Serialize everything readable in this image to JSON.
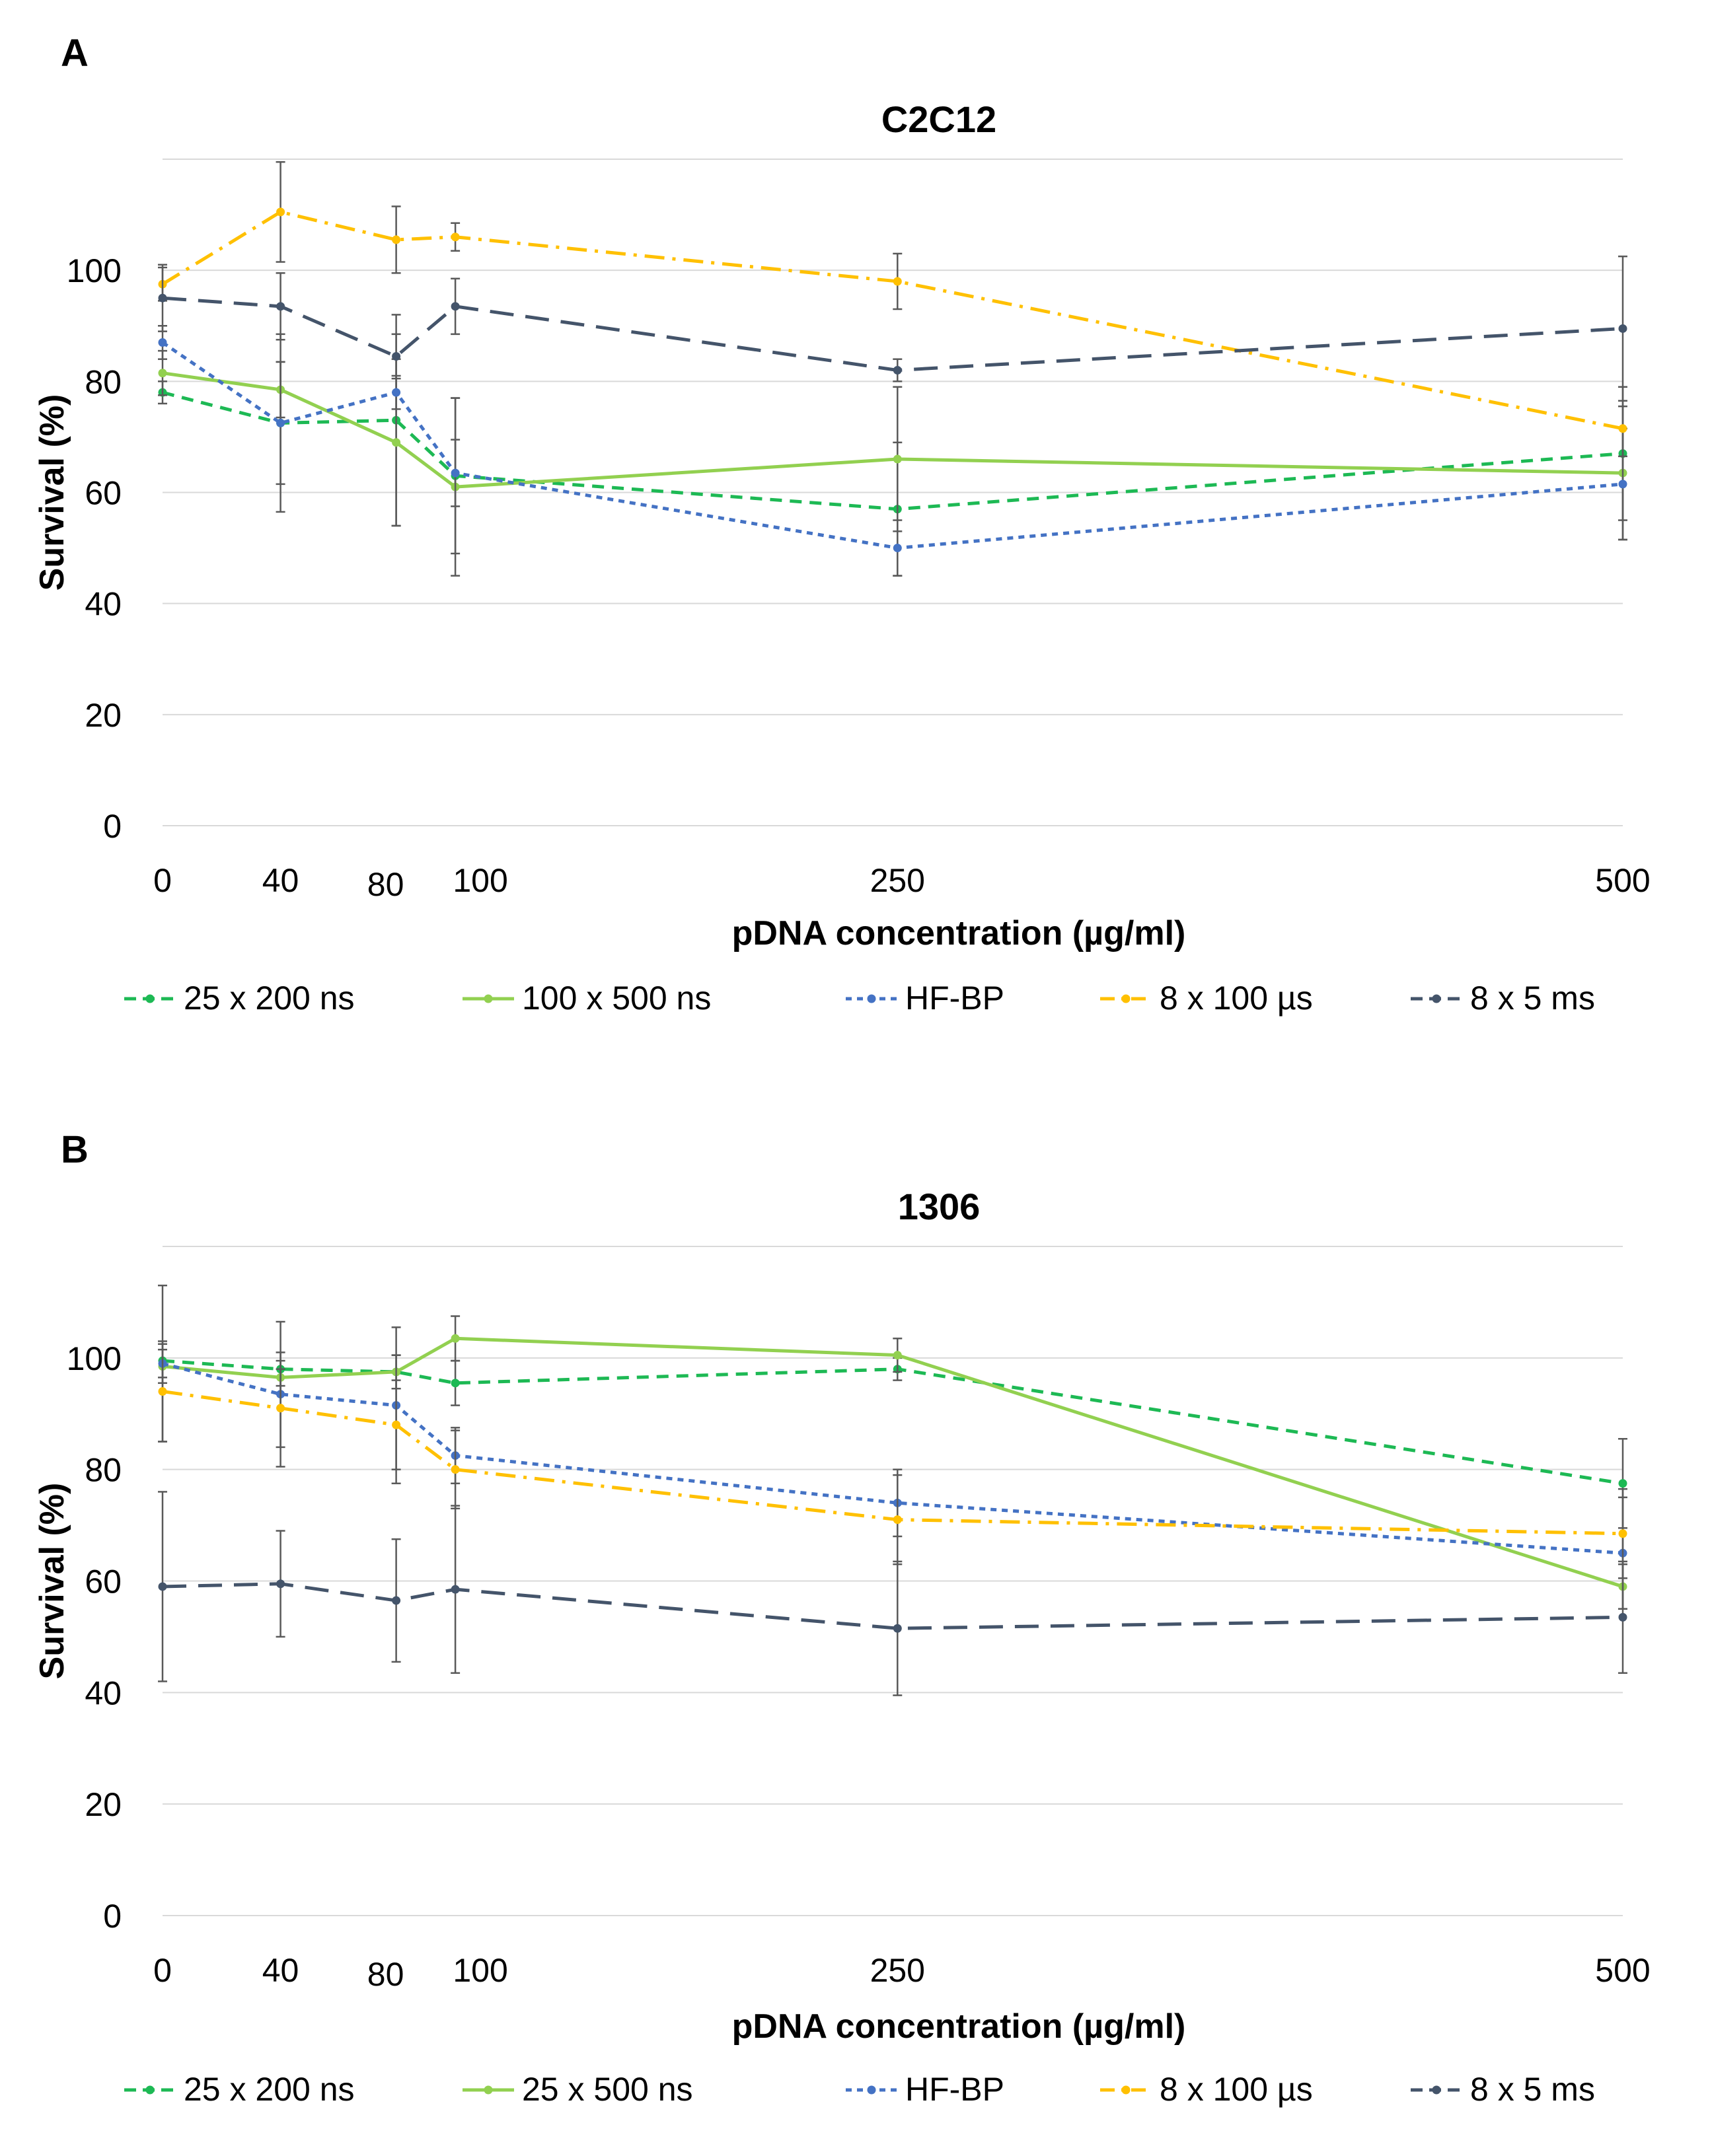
{
  "chart_data": [
    {
      "panel": "A",
      "type": "line",
      "title": "C2C12",
      "xlabel": "pDNA concentration (µg/ml)",
      "ylabel": "Survival (%)",
      "x": [
        0,
        40,
        80,
        100,
        250,
        500
      ],
      "xticks": [
        "0",
        "40",
        "80",
        "100",
        "250",
        "500"
      ],
      "yticks": [
        "0",
        "20",
        "40",
        "60",
        "80",
        "100"
      ],
      "ylim": [
        0,
        120
      ],
      "grid": true,
      "legend_position": "bottom",
      "series": [
        {
          "name": "25 x 200 ns",
          "color": "#1db954",
          "dash": "dash",
          "values": [
            78,
            72.5,
            73,
            63,
            57,
            67
          ],
          "errors": [
            2,
            16,
            19,
            14,
            12,
            12
          ]
        },
        {
          "name": "100 x 500 ns",
          "color": "#92d050",
          "dash": "solid",
          "values": [
            81.5,
            78.5,
            69,
            61,
            66,
            63.5
          ],
          "errors": [
            4,
            5,
            15,
            16,
            13,
            12
          ]
        },
        {
          "name": "HF-BP",
          "color": "#4472c4",
          "dash": "dot",
          "values": [
            87,
            72.5,
            78,
            63.5,
            50,
            61.5
          ],
          "errors": [
            3,
            11,
            3,
            6,
            5,
            10
          ]
        },
        {
          "name": "8 x 100 µs",
          "color": "#ffc000",
          "dash": "dashdot",
          "values": [
            97.5,
            110.5,
            105.5,
            106,
            98,
            71.5
          ],
          "errors": [
            3,
            9,
            6,
            2.5,
            5,
            5
          ]
        },
        {
          "name": "8 x 5 ms",
          "color": "#44546a",
          "dash": "longdash",
          "values": [
            95,
            93.5,
            84.5,
            93.5,
            82,
            89.5
          ],
          "errors": [
            6,
            6,
            4,
            5,
            2,
            13
          ]
        }
      ]
    },
    {
      "panel": "B",
      "type": "line",
      "title": "1306",
      "xlabel": "pDNA concentration (µg/ml)",
      "ylabel": "Survival (%)",
      "x": [
        0,
        40,
        80,
        100,
        250,
        500
      ],
      "xticks": [
        "0",
        "40",
        "80",
        "100",
        "250",
        "500"
      ],
      "yticks": [
        "0",
        "20",
        "40",
        "60",
        "80",
        "100"
      ],
      "ylim": [
        0,
        120
      ],
      "grid": true,
      "legend_position": "bottom",
      "series": [
        {
          "name": "25 x 200 ns",
          "color": "#1db954",
          "dash": "dash",
          "values": [
            99.5,
            98,
            97.5,
            95.5,
            98,
            77.5
          ],
          "errors": [
            3,
            3,
            3,
            4,
            2,
            8
          ]
        },
        {
          "name": "25 x 500 ns",
          "color": "#92d050",
          "dash": "solid",
          "values": [
            98.5,
            96.5,
            97.5,
            103.5,
            100.5,
            59
          ],
          "errors": [
            3,
            3,
            3,
            4,
            3,
            4
          ]
        },
        {
          "name": "HF-BP",
          "color": "#4472c4",
          "dash": "dot",
          "values": [
            99,
            93.5,
            91.5,
            82.5,
            74,
            65
          ],
          "errors": [
            14,
            13,
            14,
            5,
            6,
            10
          ]
        },
        {
          "name": "8 x 100 µs",
          "color": "#ffc000",
          "dash": "dashdot",
          "values": [
            94,
            91,
            88,
            80,
            71,
            68.5
          ],
          "errors": [
            9,
            7,
            8,
            7,
            8,
            8
          ]
        },
        {
          "name": "8 x 5 ms",
          "color": "#44546a",
          "dash": "longdash",
          "values": [
            59,
            59.5,
            56.5,
            58.5,
            51.5,
            53.5
          ],
          "errors": [
            17,
            9.5,
            11,
            15,
            12,
            10
          ]
        }
      ]
    }
  ]
}
